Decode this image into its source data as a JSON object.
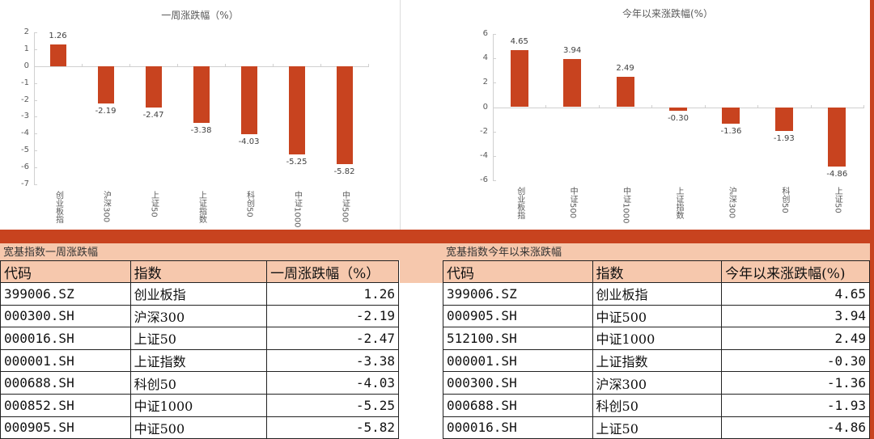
{
  "chart_data": [
    {
      "type": "bar",
      "title": "一周涨跌幅（%）",
      "categories": [
        "创业板指",
        "沪深300",
        "上证50",
        "上证指数",
        "科创50",
        "中证1000",
        "中证500"
      ],
      "values": [
        1.26,
        -2.19,
        -2.47,
        -3.38,
        -4.03,
        -5.25,
        -5.82
      ],
      "data_labels": [
        "1.26",
        "-2.19",
        "-2.47",
        "-3.38",
        "-4.03",
        "-5.25",
        "-5.82"
      ],
      "yticks": [
        "2",
        "1",
        "0",
        "-1",
        "-2",
        "-3",
        "-4",
        "-5",
        "-6",
        "-7"
      ],
      "ylim": [
        -7,
        2
      ],
      "xlabel": "",
      "ylabel": "",
      "grid": false,
      "legend": "none",
      "bar_color": "#c8431f"
    },
    {
      "type": "bar",
      "title": "今年以来涨跌幅(%）",
      "categories": [
        "创业板指",
        "中证500",
        "中证1000",
        "上证指数",
        "沪深300",
        "科创50",
        "上证50"
      ],
      "values": [
        4.65,
        3.94,
        2.49,
        -0.3,
        -1.36,
        -1.93,
        -4.86
      ],
      "data_labels": [
        "4.65",
        "3.94",
        "2.49",
        "-0.30",
        "-1.36",
        "-1.93",
        "-4.86"
      ],
      "yticks": [
        "6",
        "4",
        "2",
        "0",
        "-2",
        "-4",
        "-6"
      ],
      "ylim": [
        -6,
        6
      ],
      "xlabel": "",
      "ylabel": "",
      "grid": false,
      "legend": "none",
      "bar_color": "#c8431f"
    }
  ],
  "colors": {
    "accent": "#c8431f",
    "header_bg": "#f6c8ad"
  },
  "tables": {
    "weekly": {
      "title": "宽基指数一周涨跌幅",
      "headers": [
        "代码",
        "指数",
        "一周涨跌幅（%）"
      ],
      "rows": [
        [
          "399006.SZ",
          "创业板指",
          "1.26"
        ],
        [
          "000300.SH",
          "沪深300",
          "-2.19"
        ],
        [
          "000016.SH",
          "上证50",
          "-2.47"
        ],
        [
          "000001.SH",
          "上证指数",
          "-3.38"
        ],
        [
          "000688.SH",
          "科创50",
          "-4.03"
        ],
        [
          "000852.SH",
          "中证1000",
          "-5.25"
        ],
        [
          "000905.SH",
          "中证500",
          "-5.82"
        ]
      ]
    },
    "ytd": {
      "title": "宽基指数今年以来涨跌幅",
      "headers": [
        "代码",
        "指数",
        "今年以来涨跌幅(%)"
      ],
      "rows": [
        [
          "399006.SZ",
          "创业板指",
          "4.65"
        ],
        [
          "000905.SH",
          "中证500",
          "3.94"
        ],
        [
          "512100.SH",
          "中证1000",
          "2.49"
        ],
        [
          "000001.SH",
          "上证指数",
          "-0.30"
        ],
        [
          "000300.SH",
          "沪深300",
          "-1.36"
        ],
        [
          "000688.SH",
          "科创50",
          "-1.93"
        ],
        [
          "000016.SH",
          "上证50",
          "-4.86"
        ]
      ]
    }
  }
}
